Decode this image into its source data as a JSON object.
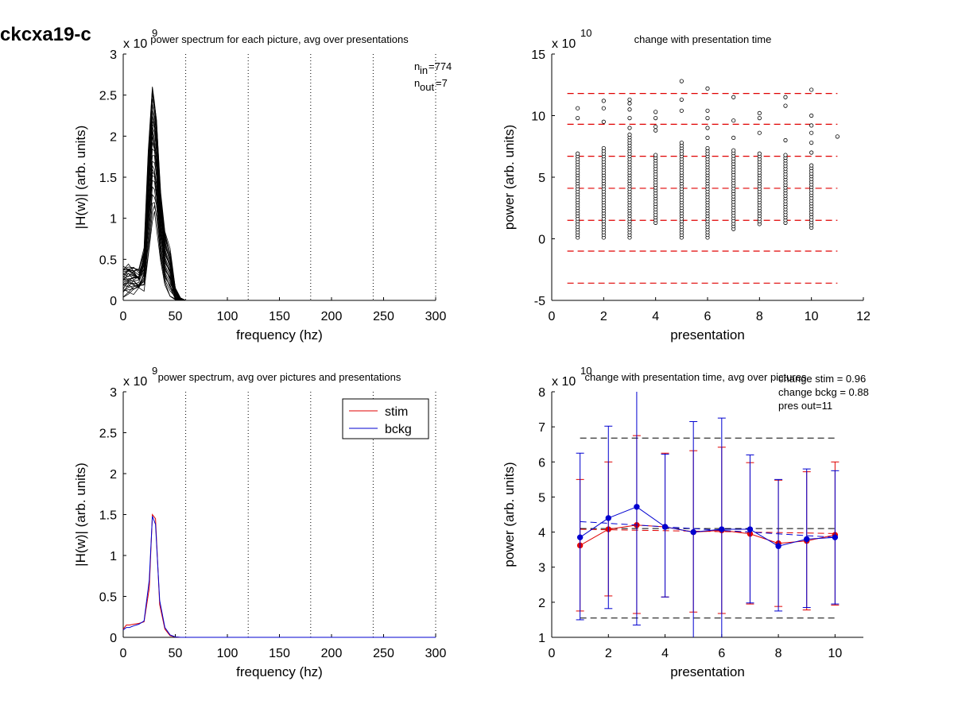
{
  "page_title": "ckcxa19-c",
  "chart_data": [
    {
      "id": "panel1",
      "type": "line",
      "title": "power spectrum for each picture, avg over presentations",
      "xlabel": "frequency (hz)",
      "ylabel": "|H(w)| (arb. units)",
      "multiplier": "x 10",
      "multiplier_exp": "9",
      "xlim": [
        0,
        300
      ],
      "ylim": [
        0,
        3
      ],
      "xticks": [
        "0",
        "50",
        "100",
        "150",
        "200",
        "250",
        "300"
      ],
      "yticks": [
        "0",
        "0.5",
        "1",
        "1.5",
        "2",
        "2.5",
        "3"
      ],
      "vlines": [
        60,
        120,
        180,
        240,
        300
      ],
      "annotation_nin": "n",
      "annotation_nin_sub": "in",
      "annotation_nin_val": "=774",
      "annotation_nout": "n",
      "annotation_nout_sub": "out",
      "annotation_nout_val": "=7",
      "series_description_count": 774,
      "envelope": {
        "x": [
          0,
          5,
          10,
          15,
          20,
          24,
          28,
          30,
          32,
          36,
          40,
          45,
          50,
          55,
          60
        ],
        "upper": [
          0.4,
          0.42,
          0.4,
          0.35,
          0.6,
          1.8,
          2.62,
          2.45,
          2.2,
          1.3,
          0.8,
          0.6,
          0.15,
          0.03,
          0.0
        ],
        "lower": [
          0.05,
          0.08,
          0.1,
          0.12,
          0.15,
          0.5,
          1.0,
          1.05,
          0.9,
          0.45,
          0.2,
          0.05,
          0.01,
          0.0,
          0.0
        ]
      }
    },
    {
      "id": "panel2",
      "type": "scatter",
      "title": "change with presentation time",
      "xlabel": "presentation",
      "ylabel": "power (arb. units)",
      "multiplier": "x 10",
      "multiplier_exp": "10",
      "xlim": [
        0,
        12
      ],
      "ylim": [
        -5,
        15
      ],
      "xticks": [
        "0",
        "2",
        "4",
        "6",
        "8",
        "10",
        "12"
      ],
      "yticks": [
        "-5",
        "0",
        "5",
        "10",
        "15"
      ],
      "hlines_red_dashed": [
        11.8,
        9.3,
        6.7,
        4.1,
        1.5,
        -1.0,
        -3.6
      ],
      "columns": [
        {
          "x": 1,
          "low": 0.1,
          "high": 7.0,
          "outliers": [
            9.8,
            10.6
          ]
        },
        {
          "x": 2,
          "low": 0.1,
          "high": 7.4,
          "outliers": [
            9.5,
            10.6,
            11.2
          ]
        },
        {
          "x": 3,
          "low": 0.1,
          "high": 8.5,
          "outliers": [
            9.0,
            9.8,
            10.5,
            11.0,
            11.3
          ]
        },
        {
          "x": 4,
          "low": 1.3,
          "high": 7.0,
          "outliers": [
            8.8,
            9.1,
            9.8,
            10.3
          ]
        },
        {
          "x": 5,
          "low": 0.1,
          "high": 8.0,
          "outliers": [
            10.4,
            11.3,
            12.8
          ]
        },
        {
          "x": 6,
          "low": 0.1,
          "high": 7.5,
          "outliers": [
            8.2,
            9.0,
            9.8,
            10.4,
            12.2
          ]
        },
        {
          "x": 7,
          "low": 0.8,
          "high": 7.2,
          "outliers": [
            8.2,
            9.6,
            11.5
          ]
        },
        {
          "x": 8,
          "low": 1.2,
          "high": 7.0,
          "outliers": [
            8.6,
            9.8,
            10.2
          ]
        },
        {
          "x": 9,
          "low": 1.3,
          "high": 7.0,
          "outliers": [
            8.0,
            10.8,
            11.5
          ]
        },
        {
          "x": 10,
          "low": 0.9,
          "high": 6.0,
          "outliers": [
            7.0,
            7.8,
            8.6,
            9.2,
            10.0,
            12.1
          ]
        },
        {
          "x": 11,
          "low": 8.3,
          "high": 8.3,
          "outliers": []
        }
      ]
    },
    {
      "id": "panel3",
      "type": "line",
      "title": "power spectrum, avg over pictures and presentations",
      "xlabel": "frequency (hz)",
      "ylabel": "|H(w)| (arb. units)",
      "multiplier": "x 10",
      "multiplier_exp": "9",
      "xlim": [
        0,
        300
      ],
      "ylim": [
        0,
        3
      ],
      "xticks": [
        "0",
        "50",
        "100",
        "150",
        "200",
        "250",
        "300"
      ],
      "yticks": [
        "0",
        "0.5",
        "1",
        "1.5",
        "2",
        "2.5",
        "3"
      ],
      "vlines": [
        60,
        120,
        180,
        240,
        300
      ],
      "legend_position": "top-right",
      "series": [
        {
          "name": "stim",
          "color": "#e00000",
          "x": [
            0,
            3,
            6,
            10,
            15,
            20,
            25,
            28,
            31,
            35,
            40,
            45,
            50,
            55,
            60,
            300
          ],
          "y": [
            0.1,
            0.15,
            0.15,
            0.16,
            0.17,
            0.19,
            0.6,
            1.5,
            1.45,
            0.4,
            0.1,
            0.02,
            0.005,
            0.0,
            0.0,
            0.0
          ]
        },
        {
          "name": "bckg",
          "color": "#0000d0",
          "x": [
            0,
            3,
            6,
            10,
            15,
            20,
            25,
            28,
            31,
            35,
            40,
            45,
            50,
            55,
            60,
            300
          ],
          "y": [
            0.09,
            0.12,
            0.12,
            0.14,
            0.16,
            0.2,
            0.7,
            1.48,
            1.38,
            0.45,
            0.12,
            0.03,
            0.005,
            0.0,
            0.0,
            0.0
          ]
        }
      ]
    },
    {
      "id": "panel4",
      "type": "line",
      "title": "change with presentation time, avg over pictures",
      "xlabel": "presentation",
      "ylabel": "power (arb. units)",
      "multiplier": "x 10",
      "multiplier_exp": "10",
      "xlim": [
        0,
        11
      ],
      "ylim": [
        1,
        8
      ],
      "xticks": [
        "0",
        "2",
        "4",
        "6",
        "8",
        "10"
      ],
      "yticks": [
        "1",
        "2",
        "3",
        "4",
        "5",
        "6",
        "7",
        "8"
      ],
      "annotations": [
        "change stim = 0.96",
        "change bckg = 0.88",
        "pres out=11"
      ],
      "hlines_black_dashed": [
        6.68,
        4.1,
        1.55
      ],
      "series": [
        {
          "name": "stim",
          "color": "#e00000",
          "x": [
            1,
            2,
            3,
            4,
            5,
            6,
            7,
            8,
            9,
            10
          ],
          "y": [
            3.62,
            4.08,
            4.2,
            4.15,
            4.0,
            4.05,
            3.95,
            3.68,
            3.75,
            3.92
          ],
          "err_low": [
            1.75,
            2.18,
            1.68,
            2.15,
            1.72,
            1.68,
            1.95,
            1.88,
            1.78,
            1.92
          ],
          "err_high": [
            5.5,
            6.0,
            6.75,
            6.25,
            6.32,
            6.42,
            5.98,
            5.48,
            5.72,
            6.0
          ],
          "trend": [
            4.08,
            3.96
          ]
        },
        {
          "name": "bckg",
          "color": "#0000d0",
          "x": [
            1,
            2,
            3,
            4,
            5,
            6,
            7,
            8,
            9,
            10
          ],
          "y": [
            3.85,
            4.4,
            4.72,
            4.15,
            4.0,
            4.08,
            4.08,
            3.6,
            3.8,
            3.85
          ],
          "err_low": [
            1.5,
            1.82,
            1.35,
            2.15,
            0.85,
            0.95,
            1.98,
            1.75,
            1.85,
            1.95
          ],
          "err_high": [
            6.25,
            7.02,
            8.1,
            6.22,
            7.15,
            7.25,
            6.2,
            5.5,
            5.8,
            5.75
          ],
          "trend": [
            4.3,
            3.85
          ]
        }
      ]
    }
  ]
}
